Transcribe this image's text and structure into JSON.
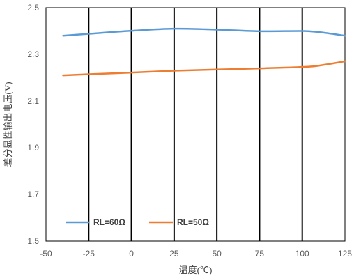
{
  "chart_data": {
    "type": "line",
    "title": "",
    "xlabel": "温度(℃)",
    "ylabel": "差分显性输出电压(V)",
    "xlim": [
      -50,
      125
    ],
    "ylim": [
      1.5,
      2.5
    ],
    "x_ticks": [
      -50,
      -25,
      0,
      25,
      50,
      75,
      100,
      125
    ],
    "y_ticks": [
      1.5,
      1.7,
      1.9,
      2.1,
      2.3,
      2.5
    ],
    "x_tick_labels": [
      "-50",
      "-25",
      "0",
      "25",
      "50",
      "75",
      "100",
      "125"
    ],
    "y_tick_labels": [
      "1.5",
      "1.7",
      "1.9",
      "2.1",
      "2.3",
      "2.5"
    ],
    "grid": {
      "x": true,
      "y": false
    },
    "legend": {
      "placement": "bottom-left",
      "layout": "horizontal"
    },
    "series": [
      {
        "name": "RL=60Ω",
        "color": "#5B9BD5",
        "x": [
          -40,
          -25,
          0,
          25,
          50,
          75,
          100,
          110,
          125
        ],
        "y": [
          2.38,
          2.388,
          2.401,
          2.41,
          2.406,
          2.399,
          2.4,
          2.395,
          2.38
        ]
      },
      {
        "name": "RL=50Ω",
        "color": "#ED7D31",
        "x": [
          -40,
          -25,
          0,
          25,
          50,
          75,
          100,
          110,
          125
        ],
        "y": [
          2.21,
          2.215,
          2.222,
          2.23,
          2.235,
          2.24,
          2.246,
          2.252,
          2.27
        ]
      }
    ]
  }
}
